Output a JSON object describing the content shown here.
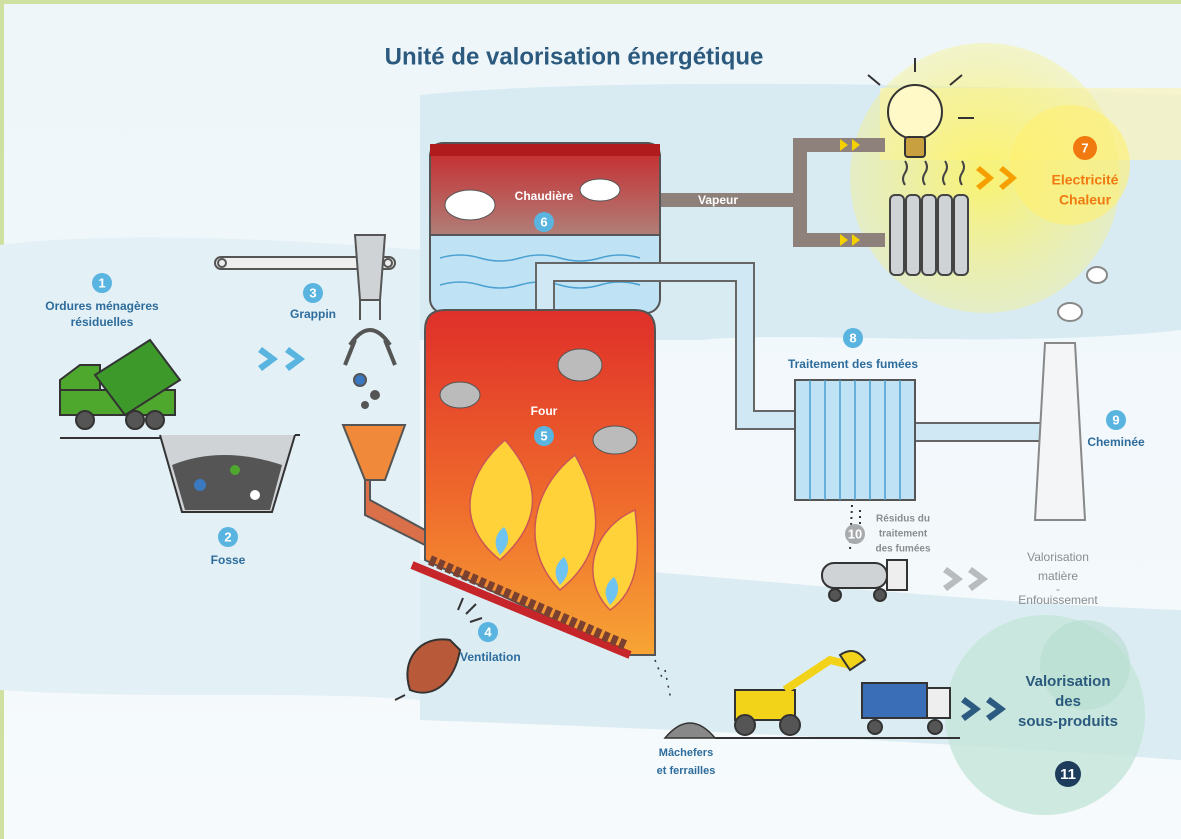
{
  "title": "Unité de valorisation énergétique",
  "steps": [
    {
      "number": 1,
      "label": [
        "Ordures ménagères",
        "résiduelles"
      ]
    },
    {
      "number": 2,
      "label": [
        "Fosse"
      ]
    },
    {
      "number": 3,
      "label": [
        "Grappin"
      ]
    },
    {
      "number": 4,
      "label": [
        "Ventilation"
      ]
    },
    {
      "number": 5,
      "label": [
        "Four"
      ]
    },
    {
      "number": 6,
      "label": [
        "Chaudière"
      ]
    },
    {
      "number": 7,
      "label": [
        "Electricité",
        "Chaleur"
      ]
    },
    {
      "number": 8,
      "label": [
        "Traitement des fumées"
      ]
    },
    {
      "number": 9,
      "label": [
        "Cheminée"
      ]
    },
    {
      "number": 10,
      "label": [
        "Résidus du",
        "traitement",
        "des fumées"
      ]
    },
    {
      "number": 11,
      "label": [
        "Valorisation",
        "des",
        "sous-produits"
      ]
    }
  ],
  "flow_labels": {
    "steam": "Vapeur",
    "material_recovery": [
      "Valorisation",
      "matière",
      "-",
      "Enfouissement"
    ],
    "bottom_ash": [
      "Mâchefers",
      "et ferrailles"
    ]
  }
}
